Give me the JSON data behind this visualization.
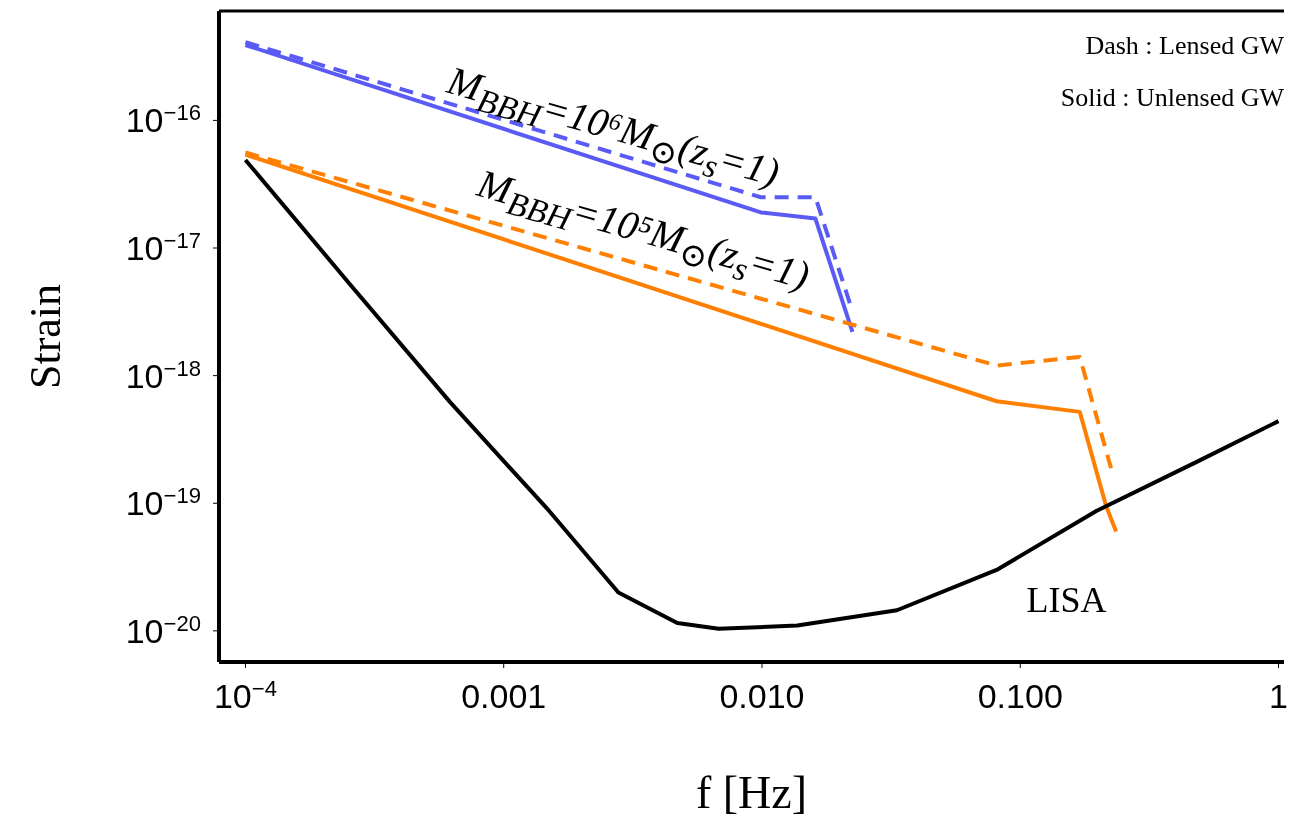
{
  "chart_data": {
    "type": "line",
    "xlabel": "f [Hz]",
    "ylabel": "Strain",
    "log": "xy",
    "marker": "none",
    "xlim": [
      7.9e-05,
      1.05
    ],
    "ylim": [
      5.7e-21,
      7.2e-16
    ],
    "xticks": [
      {
        "value": 0.0001,
        "label": "10$^{−4}$"
      },
      {
        "value": 0.001,
        "label": "0.001"
      },
      {
        "value": 0.01,
        "label": "0.010"
      },
      {
        "value": 0.1,
        "label": "0.100"
      },
      {
        "value": 1,
        "label": "1"
      }
    ],
    "yticks": [
      {
        "value": 1e-20,
        "label": "10$^{−20}$"
      },
      {
        "value": 1e-19,
        "label": "10$^{−19}$"
      },
      {
        "value": 1e-18,
        "label": "10$^{−18}$"
      },
      {
        "value": 1e-17,
        "label": "10$^{−17}$"
      },
      {
        "value": 1e-16,
        "label": "10$^{−16}$"
      }
    ],
    "series": [
      {
        "color": "#5a5af5",
        "line_style": "solid",
        "x": [
          0.0001,
          0.0099,
          0.0161,
          0.0224
        ],
        "values": [
          3.9e-16,
          1.9e-17,
          1.7e-17,
          2.2e-18
        ]
      },
      {
        "color": "#5a5af5",
        "line_style": "dashed",
        "x": [
          0.0001,
          0.0099,
          0.0161,
          0.0224
        ],
        "values": [
          4.1e-16,
          2.5e-17,
          2.5e-17,
          3.2e-18
        ]
      },
      {
        "color": "#ff8000",
        "line_style": "solid",
        "x": [
          0.0001,
          0.081,
          0.17,
          0.215,
          0.235
        ],
        "values": [
          5.4e-17,
          6.3e-19,
          5.2e-19,
          9.5e-20,
          6e-20
        ]
      },
      {
        "color": "#ff8000",
        "line_style": "dashed",
        "x": [
          0.0001,
          0.081,
          0.17,
          0.226
        ],
        "values": [
          5.6e-17,
          1.2e-18,
          1.4e-18,
          1.8e-19
        ]
      },
      {
        "name": "LISA",
        "color": "#000000",
        "line_style": "solid",
        "x": [
          0.0001,
          0.00025,
          0.00062,
          0.0015,
          0.00278,
          0.0047,
          0.0068,
          0.0137,
          0.0333,
          0.081,
          0.197,
          0.48,
          1
        ],
        "values": [
          4.9e-17,
          5.4e-18,
          6.2e-19,
          8.7e-20,
          2e-20,
          1.15e-20,
          1.04e-20,
          1.1e-20,
          1.45e-20,
          3e-20,
          8.7e-20,
          2.1e-19,
          4.4e-19
        ]
      }
    ],
    "annotations": [
      "M$_{BBH}$=10⁶M$_{⊙}$(z$_{s}$=1)",
      "M$_{BBH}$=10⁵M$_{⊙}$(z$_{s}$=1)",
      "Dash : Lensed GW",
      "Solid : Unlensed GW"
    ]
  }
}
